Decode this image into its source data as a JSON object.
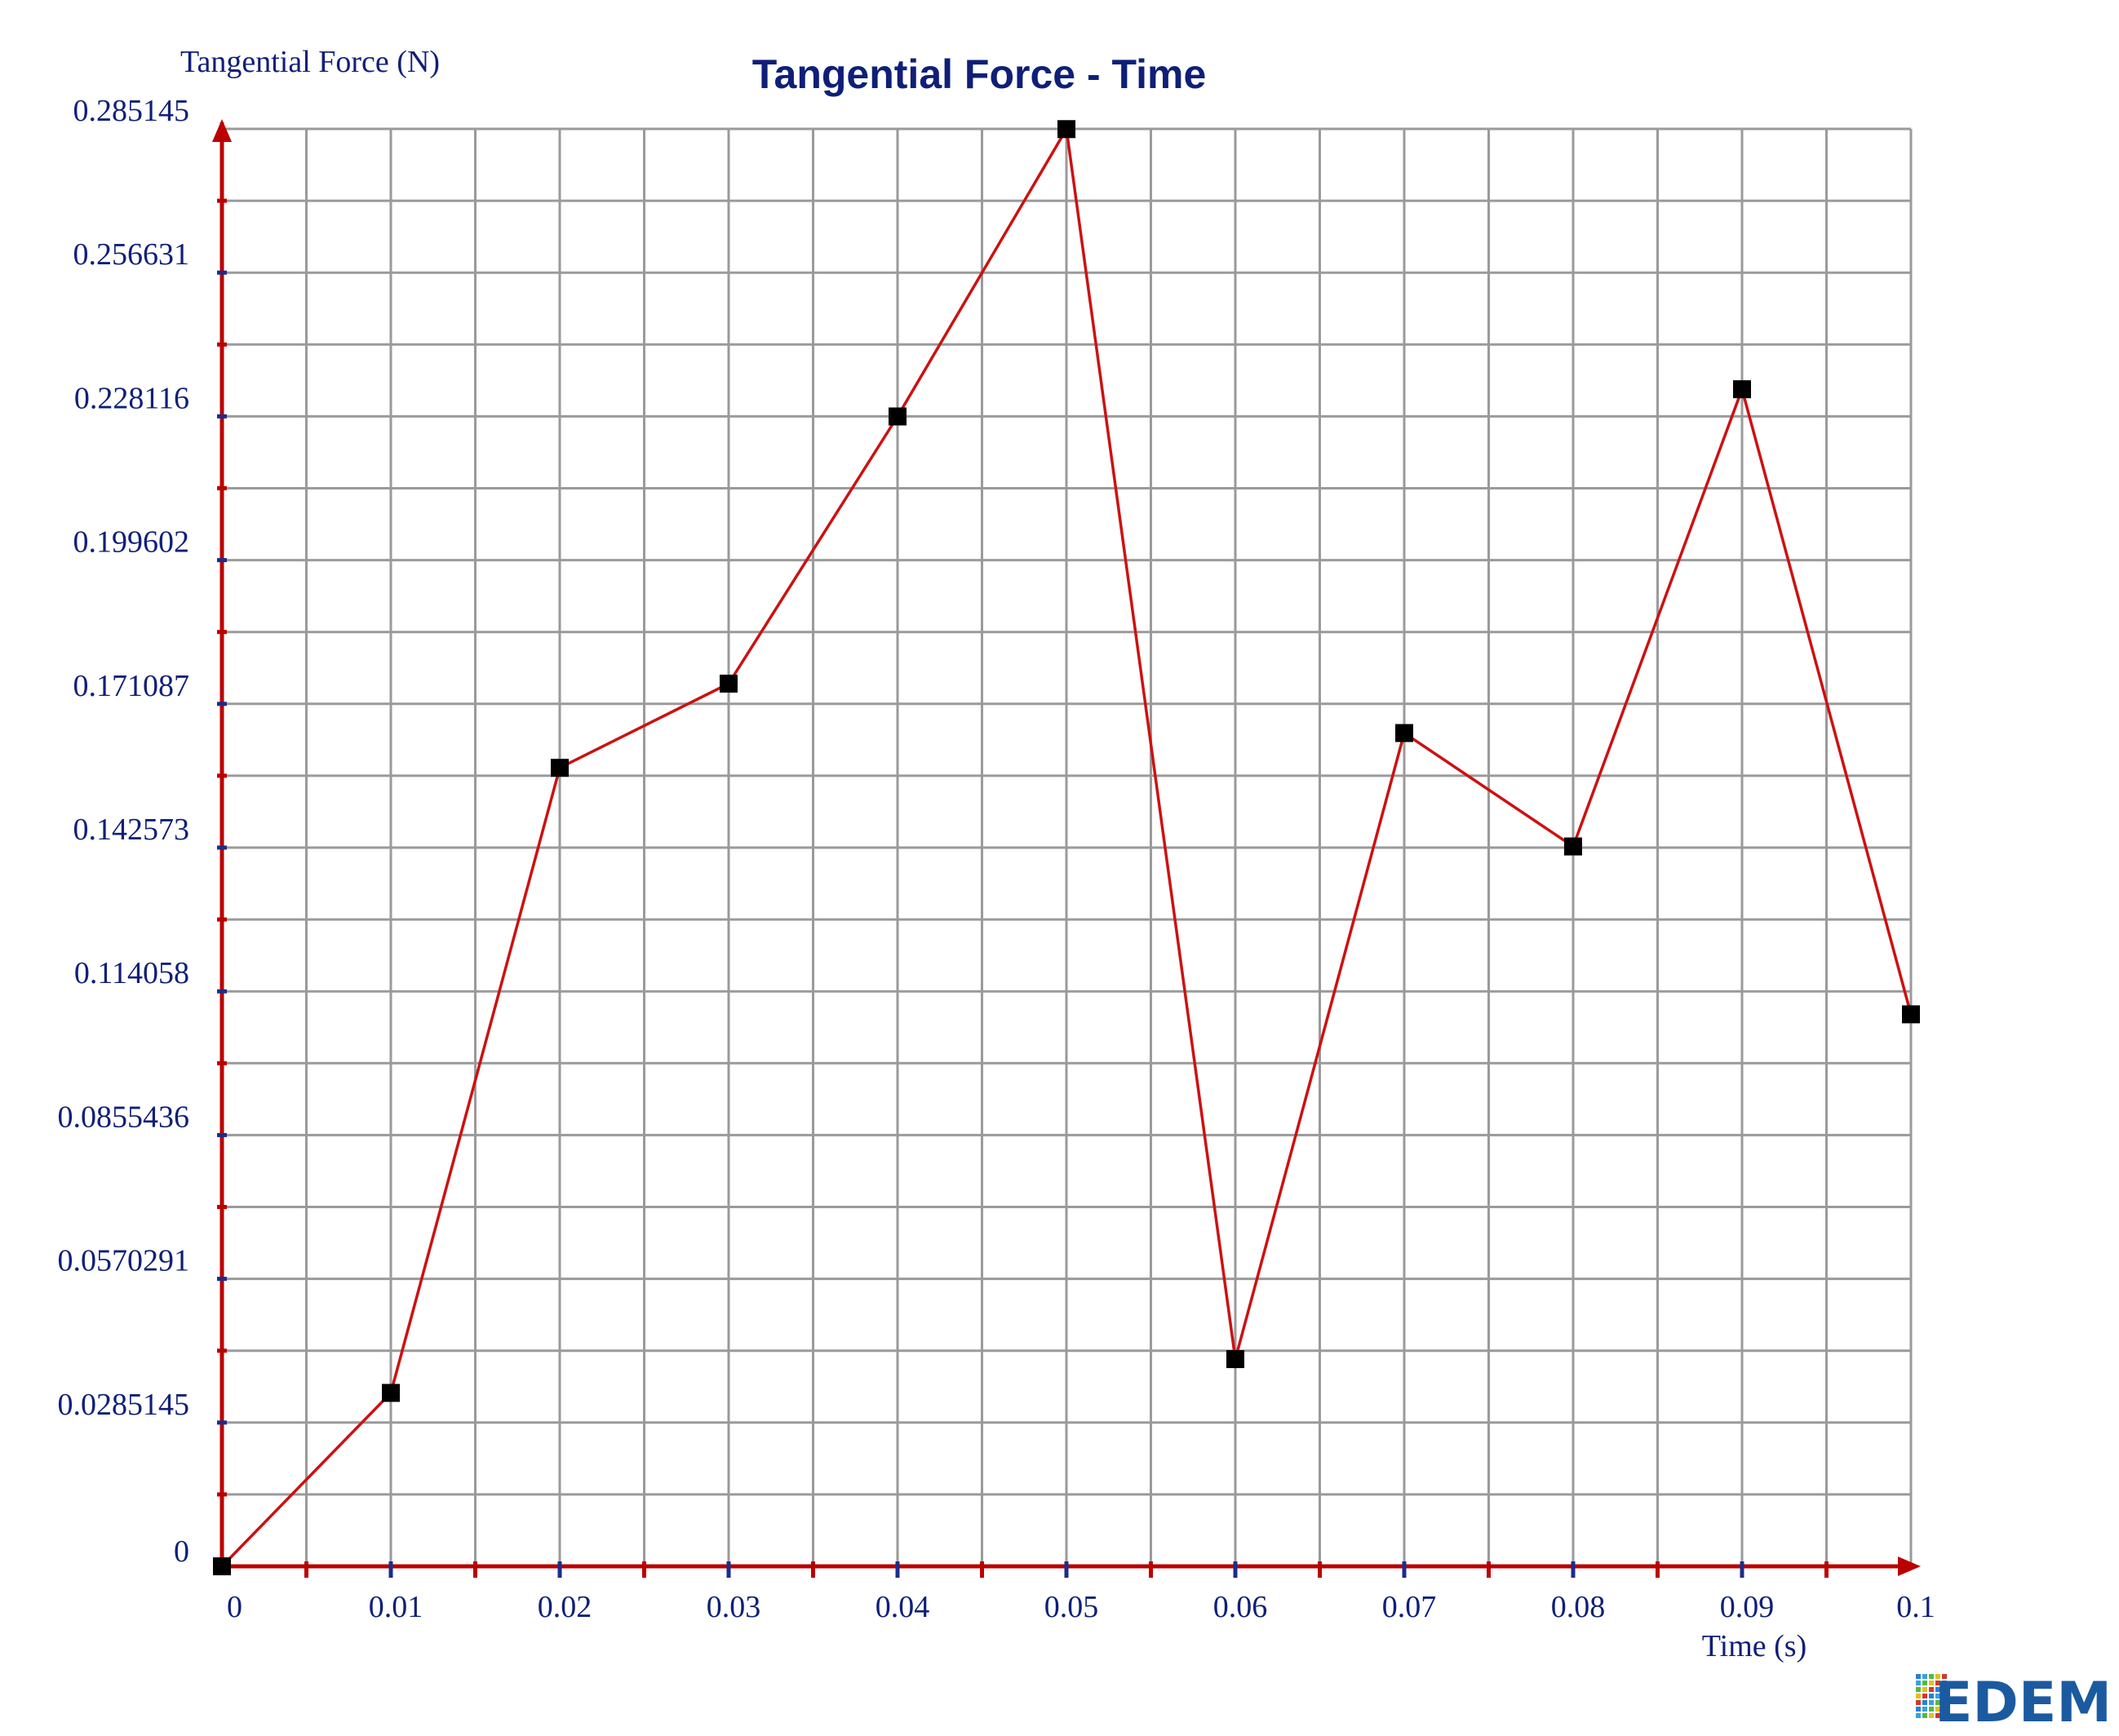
{
  "chart_data": {
    "type": "line",
    "title": "Tangential Force - Time",
    "xlabel": "Time (s)",
    "ylabel": "Tangential Force (N)",
    "xlim": [
      0,
      0.1
    ],
    "ylim": [
      0,
      0.285145
    ],
    "x_ticks": [
      "0",
      "0.01",
      "0.02",
      "0.03",
      "0.04",
      "0.05",
      "0.06",
      "0.07",
      "0.08",
      "0.09",
      "0.1"
    ],
    "y_ticks": [
      "0",
      "0.0285145",
      "0.0570291",
      "0.0855436",
      "0.114058",
      "0.142573",
      "0.171087",
      "0.199602",
      "0.228116",
      "0.256631",
      "0.285145"
    ],
    "grid": true,
    "colors": {
      "line": "#cc1111",
      "axis": "#bb0000",
      "marker": "#000000",
      "text": "#0f1f78",
      "grid": "#9a9a9a"
    },
    "series": [
      {
        "x": [
          0,
          0.01,
          0.02,
          0.03,
          0.04,
          0.05,
          0.06,
          0.07,
          0.08,
          0.09,
          0.1
        ],
        "values": [
          0,
          0.0344,
          0.1584,
          0.1751,
          0.2281,
          0.2851,
          0.0411,
          0.1653,
          0.1428,
          0.2335,
          0.1095
        ]
      }
    ]
  },
  "logo": {
    "text": "EDEM"
  }
}
